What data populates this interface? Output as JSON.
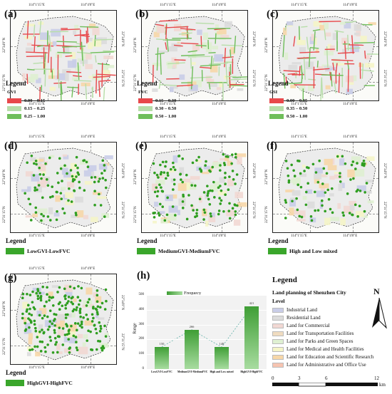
{
  "coords": {
    "lon1": "114°1'15\"E",
    "lon2": "114°4'0\"E",
    "lat1": "22°34'0\"N",
    "lat2": "22°31'15\"N"
  },
  "panels": {
    "a": {
      "label": "(a)",
      "legend_title": "Legend",
      "index_name": "GVI",
      "classes": [
        {
          "range": "0.00 – 0.15",
          "color": "#e8484b"
        },
        {
          "range": "0.15 – 0.25",
          "color": "#b7dea9"
        },
        {
          "range": "0.25 – 1.00",
          "color": "#6fbe5a"
        }
      ]
    },
    "b": {
      "label": "(b)",
      "legend_title": "Legend",
      "index_name": "FVC",
      "classes": [
        {
          "range": "0.15 – 0.30",
          "color": "#e8484b"
        },
        {
          "range": "0.30 – 0.50",
          "color": "#b7dea9"
        },
        {
          "range": "0.50 – 1.00",
          "color": "#6fbe5a"
        }
      ]
    },
    "c": {
      "label": "(c)",
      "legend_title": "Legend",
      "index_name": "GSI",
      "classes": [
        {
          "range": "0.00 – 0.35",
          "color": "#e8484b"
        },
        {
          "range": "0.35 – 0.50",
          "color": "#b7dea9"
        },
        {
          "range": "0.50 – 1.00",
          "color": "#6fbe5a"
        }
      ]
    },
    "d": {
      "label": "(d)",
      "legend_title": "Legend",
      "class_label": "LowGVI-LowFVC"
    },
    "e": {
      "label": "(e)",
      "legend_title": "Legend",
      "class_label": "MediumGVI-MediumFVC"
    },
    "f": {
      "label": "(f)",
      "legend_title": "Legend",
      "class_label": "High and Low mixed"
    },
    "g": {
      "label": "(g)",
      "legend_title": "Legend",
      "class_label": "HighGVI-HighFVC"
    },
    "h": {
      "label": "(h)"
    }
  },
  "chart_data": {
    "type": "bar",
    "legend": "Frequecy",
    "ylabel": "Range",
    "ylim": [
      0,
      500
    ],
    "yticks": [
      0,
      100,
      200,
      300,
      400,
      500
    ],
    "categories": [
      "LowGVI-LowFVC",
      "MediumGVI-MediumFVC",
      "High and Low mixed",
      "HighGVI-HighFVC"
    ],
    "values": [
      150,
      266,
      148,
      421
    ],
    "value_labels": [
      "150",
      "266",
      "148",
      "421"
    ],
    "trend_line": "dashed",
    "grid": true
  },
  "land_legend": {
    "title": "Legend",
    "subtitle": "Land planning of Shenzhen City",
    "level_label": "Level",
    "items": [
      {
        "label": "Industrial Land",
        "color": "#c9cde8"
      },
      {
        "label": "Residential Land",
        "color": "#dcdcdc"
      },
      {
        "label": "Land for Commercial",
        "color": "#f2d8d3"
      },
      {
        "label": "Land for Transportation Facilities",
        "color": "#f0dcc0"
      },
      {
        "label": "Land for Parks and Green Spaces",
        "color": "#dff0d2"
      },
      {
        "label": "Land for Medical and Health Facilities",
        "color": "#f5f5c8"
      },
      {
        "label": "Land for Education and Scientific Research",
        "color": "#f7d7a8"
      },
      {
        "label": "Land for Administrative and Office Use",
        "color": "#f6c4b0"
      }
    ],
    "north_label": "N",
    "scale": {
      "ticks": [
        "0",
        "3",
        "6",
        "12"
      ],
      "unit": "km"
    }
  }
}
